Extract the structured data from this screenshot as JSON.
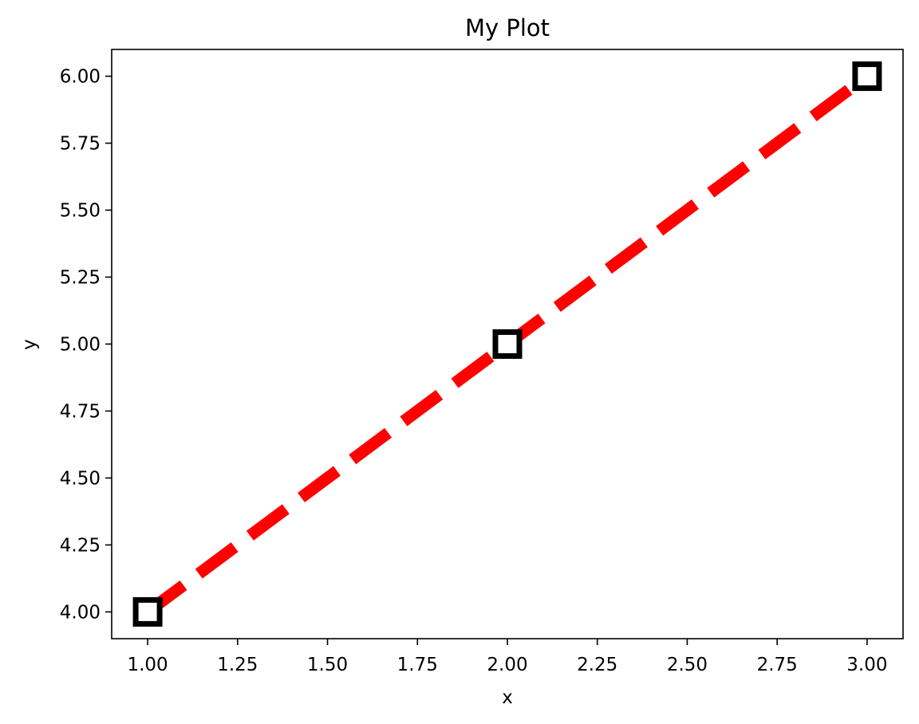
{
  "chart_data": {
    "type": "line",
    "title": "My Plot",
    "xlabel": "x",
    "ylabel": "y",
    "xlim": [
      0.9,
      3.1
    ],
    "ylim": [
      3.9,
      6.1
    ],
    "xticks": [
      1.0,
      1.25,
      1.5,
      1.75,
      2.0,
      2.25,
      2.5,
      2.75,
      3.0
    ],
    "xtick_labels": [
      "1.00",
      "1.25",
      "1.50",
      "1.75",
      "2.00",
      "2.25",
      "2.50",
      "2.75",
      "3.00"
    ],
    "yticks": [
      4.0,
      4.25,
      4.5,
      4.75,
      5.0,
      5.25,
      5.5,
      5.75,
      6.0
    ],
    "ytick_labels": [
      "4.00",
      "4.25",
      "4.50",
      "4.75",
      "5.00",
      "5.25",
      "5.50",
      "5.75",
      "6.00"
    ],
    "grid": false,
    "series": [
      {
        "x": [
          1,
          2,
          3
        ],
        "y": [
          4,
          5,
          6
        ],
        "line_color": "#ff0000",
        "line_style": "dashed",
        "marker": "square",
        "marker_face_color": "#ffffff",
        "marker_edge_color": "#000000"
      }
    ]
  }
}
